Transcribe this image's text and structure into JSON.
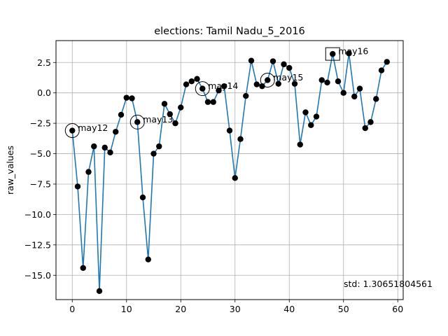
{
  "chart_data": {
    "type": "line",
    "title": "elections: Tamil Nadu_5_2016",
    "xlabel": "",
    "ylabel": "raw_values",
    "xlim": [
      -3,
      61
    ],
    "ylim": [
      -17.0,
      4.3
    ],
    "grid": true,
    "line_color": "#1f77b4",
    "marker_color": "#000000",
    "xticks": [
      0,
      10,
      20,
      30,
      40,
      50,
      60
    ],
    "xtick_labels": [
      "0",
      "10",
      "20",
      "30",
      "40",
      "50",
      "60"
    ],
    "yticks": [
      2.5,
      0.0,
      -2.5,
      -5.0,
      -7.5,
      -10.0,
      -12.5,
      -15.0
    ],
    "ytick_labels": [
      "2.5",
      "0.0",
      "−2.5",
      "−5.0",
      "−7.5",
      "−10.0",
      "−12.5",
      "−15.0"
    ],
    "x": [
      0,
      1,
      2,
      3,
      4,
      5,
      6,
      7,
      8,
      9,
      10,
      11,
      12,
      13,
      14,
      15,
      16,
      17,
      18,
      19,
      20,
      21,
      22,
      23,
      24,
      25,
      26,
      27,
      28,
      29,
      30,
      31,
      32,
      33,
      34,
      35,
      36,
      37,
      38,
      39,
      40,
      41,
      42,
      43,
      44,
      45,
      46,
      47,
      48,
      49,
      50,
      51,
      52,
      53,
      54,
      55,
      56,
      57,
      58
    ],
    "y": [
      -3.1,
      -7.7,
      -14.4,
      -6.5,
      -4.4,
      -16.3,
      -4.5,
      -4.9,
      -3.2,
      -1.8,
      -0.4,
      -0.45,
      -2.4,
      -8.6,
      -13.7,
      -5.0,
      -4.4,
      -0.9,
      -1.75,
      -2.5,
      -1.2,
      0.7,
      0.95,
      1.15,
      0.35,
      -0.75,
      -0.75,
      0.2,
      0.55,
      -3.1,
      -7.0,
      -3.8,
      -0.25,
      2.65,
      0.7,
      0.55,
      1.05,
      2.6,
      0.75,
      2.35,
      2.05,
      0.75,
      -4.25,
      -1.6,
      -2.65,
      -1.95,
      1.05,
      0.85,
      3.2,
      0.95,
      0.0,
      3.25,
      -0.3,
      0.35,
      -2.9,
      -2.4,
      -0.5,
      1.85,
      2.55
    ],
    "annotations": [
      {
        "x": 0,
        "y": -3.1,
        "label": "may12",
        "marker": "circle"
      },
      {
        "x": 12,
        "y": -2.4,
        "label": "may13",
        "marker": "circle"
      },
      {
        "x": 24,
        "y": 0.35,
        "label": "may14",
        "marker": "circle"
      },
      {
        "x": 36,
        "y": 1.05,
        "label": "may15",
        "marker": "circle"
      },
      {
        "x": 48,
        "y": 3.2,
        "label": "may16",
        "marker": "square"
      }
    ],
    "footer_text": "std: 1.30651804561"
  }
}
